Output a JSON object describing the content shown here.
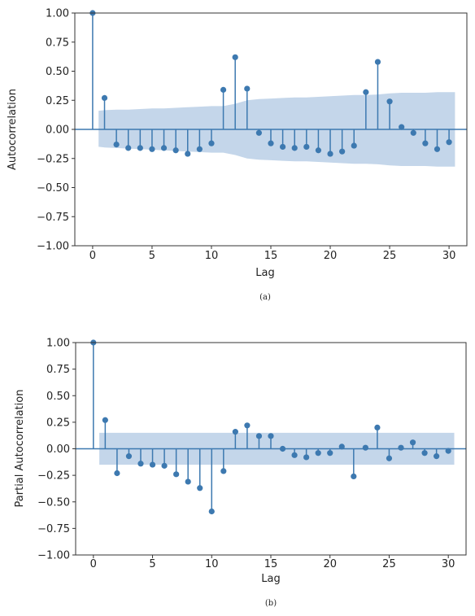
{
  "chart_data": [
    {
      "id": "acf",
      "type": "stem",
      "caption": "(a)",
      "xlabel": "Lag",
      "ylabel": "Autocorrelation",
      "xlim": [
        -1.5,
        31.5
      ],
      "ylim": [
        -1.0,
        1.0
      ],
      "xticks": [
        "0",
        "5",
        "10",
        "15",
        "20",
        "25",
        "30"
      ],
      "yticks": [
        "1.00",
        "0.75",
        "0.50",
        "0.25",
        "0.00",
        "−0.25",
        "−0.50",
        "−0.75",
        "−1.00"
      ],
      "color": "#3d79b0",
      "band_color": "#c4d6ea",
      "x": [
        0,
        1,
        2,
        3,
        4,
        5,
        6,
        7,
        8,
        9,
        10,
        11,
        12,
        13,
        14,
        15,
        16,
        17,
        18,
        19,
        20,
        21,
        22,
        23,
        24,
        25,
        26,
        27,
        28,
        29,
        30
      ],
      "values": [
        1.0,
        0.27,
        -0.13,
        -0.16,
        -0.16,
        -0.17,
        -0.16,
        -0.18,
        -0.21,
        -0.17,
        -0.12,
        0.34,
        0.62,
        0.35,
        -0.03,
        -0.12,
        -0.15,
        -0.16,
        -0.15,
        -0.18,
        -0.21,
        -0.19,
        -0.14,
        0.32,
        0.58,
        0.24,
        0.02,
        -0.03,
        -0.12,
        -0.17,
        -0.11
      ],
      "band": {
        "x": [
          0.5,
          1,
          2,
          3,
          4,
          5,
          6,
          7,
          8,
          9,
          10,
          11,
          12,
          13,
          14,
          15,
          16,
          17,
          18,
          19,
          20,
          21,
          22,
          23,
          24,
          25,
          26,
          27,
          28,
          29,
          30,
          30.5
        ],
        "upper": [
          0.16,
          0.165,
          0.17,
          0.17,
          0.175,
          0.18,
          0.18,
          0.185,
          0.19,
          0.195,
          0.2,
          0.2,
          0.22,
          0.25,
          0.26,
          0.265,
          0.27,
          0.275,
          0.275,
          0.28,
          0.285,
          0.29,
          0.295,
          0.295,
          0.3,
          0.31,
          0.315,
          0.315,
          0.315,
          0.32,
          0.32,
          0.32
        ],
        "lower": [
          -0.15,
          -0.155,
          -0.16,
          -0.165,
          -0.17,
          -0.175,
          -0.18,
          -0.185,
          -0.19,
          -0.195,
          -0.2,
          -0.2,
          -0.22,
          -0.25,
          -0.26,
          -0.265,
          -0.27,
          -0.275,
          -0.275,
          -0.28,
          -0.285,
          -0.29,
          -0.295,
          -0.295,
          -0.3,
          -0.31,
          -0.315,
          -0.315,
          -0.315,
          -0.32,
          -0.32,
          -0.32
        ]
      },
      "grid": false,
      "legend": "none"
    },
    {
      "id": "pacf",
      "type": "stem",
      "caption": "(b)",
      "xlabel": "Lag",
      "ylabel": "Partial Autocorrelation",
      "xlim": [
        -1.5,
        31.5
      ],
      "ylim": [
        -1.0,
        1.0
      ],
      "xticks": [
        "0",
        "5",
        "10",
        "15",
        "20",
        "25",
        "30"
      ],
      "yticks": [
        "1.00",
        "0.75",
        "0.50",
        "0.25",
        "0.00",
        "−0.25",
        "−0.50",
        "−0.75",
        "−1.00"
      ],
      "color": "#3d79b0",
      "band_color": "#c4d6ea",
      "x": [
        0,
        1,
        2,
        3,
        4,
        5,
        6,
        7,
        8,
        9,
        10,
        11,
        12,
        13,
        14,
        15,
        16,
        17,
        18,
        19,
        20,
        21,
        22,
        23,
        24,
        25,
        26,
        27,
        28,
        29,
        30
      ],
      "values": [
        1.0,
        0.27,
        -0.23,
        -0.07,
        -0.14,
        -0.15,
        -0.16,
        -0.24,
        -0.31,
        -0.37,
        -0.59,
        -0.21,
        0.16,
        0.22,
        0.12,
        0.12,
        0.0,
        -0.06,
        -0.08,
        -0.04,
        -0.04,
        0.02,
        -0.26,
        0.01,
        0.2,
        -0.09,
        0.01,
        0.06,
        -0.04,
        -0.07,
        -0.02
      ],
      "band": {
        "x": [
          0.5,
          30.5
        ],
        "upper": [
          0.15,
          0.15
        ],
        "lower": [
          -0.15,
          -0.15
        ]
      },
      "grid": false,
      "legend": "none"
    }
  ]
}
